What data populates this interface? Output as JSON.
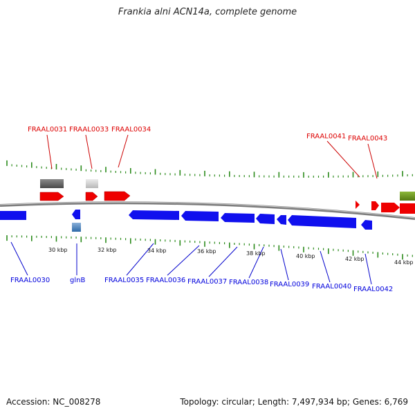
{
  "title": "Frankia alni ACN14a, complete genome",
  "footer": {
    "accession": "Accession: NC_008278",
    "meta": "Topology: circular; Length: 7,497,934 bp; Genes: 6,769"
  },
  "colors": {
    "forward": "#ee0000",
    "reverse": "#0000ee",
    "ticks": "#2a8a1a",
    "backbone": "#909090",
    "olive": "#6f9a1e"
  },
  "scale": {
    "unit": "kbp",
    "labels": [
      "30 kbp",
      "32 kbp",
      "34 kbp",
      "36 kbp",
      "38 kbp",
      "40 kbp",
      "42 kbp",
      "44 kbp"
    ]
  },
  "forward_gene_labels": [
    "FRAAL0031",
    "FRAAL0033",
    "FRAAL0034",
    "FRAAL0041",
    "FRAAL0043"
  ],
  "reverse_gene_labels": [
    "FRAAL0030",
    "glnB",
    "FRAAL0035",
    "FRAAL0036",
    "FRAAL0037",
    "FRAAL0038",
    "FRAAL0039",
    "FRAAL0040",
    "FRAAL0042"
  ]
}
